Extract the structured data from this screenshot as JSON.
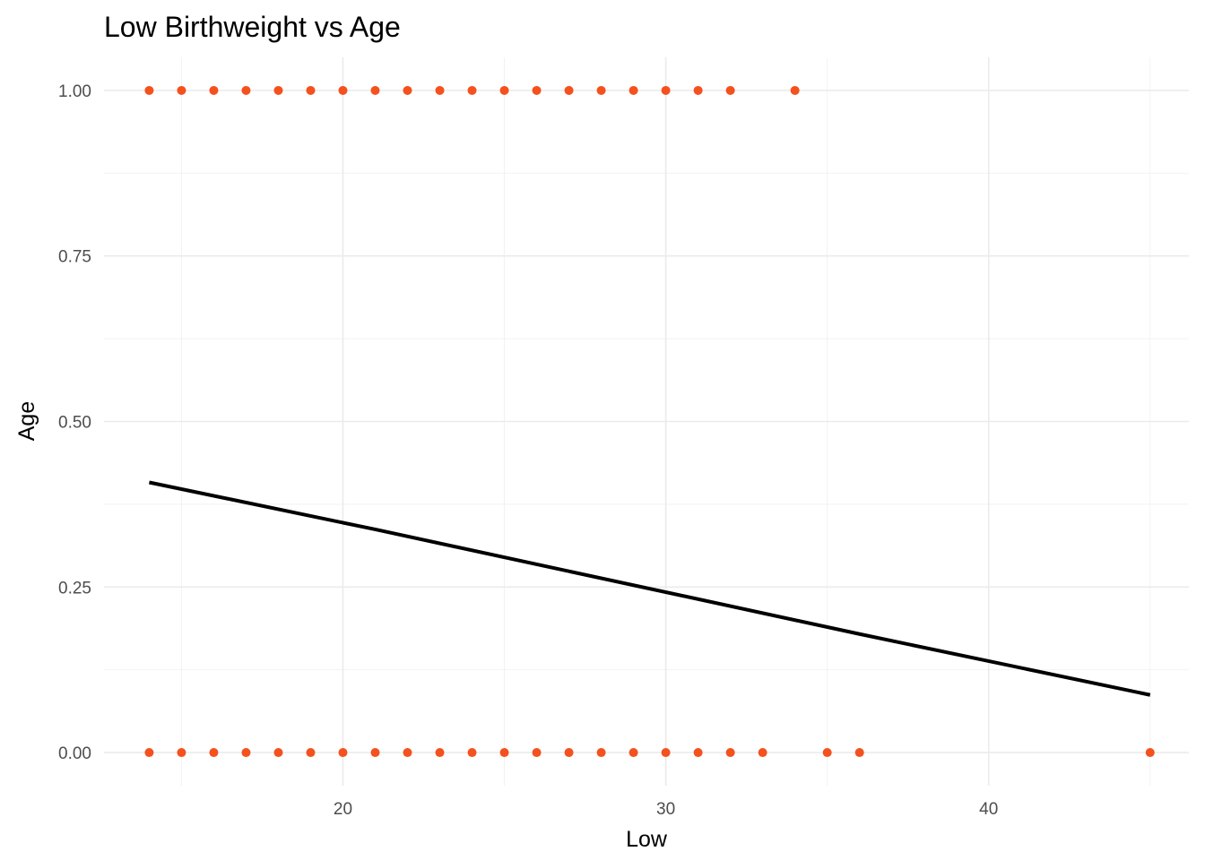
{
  "chart_data": {
    "type": "scatter",
    "title": "Low Birthweight vs Age",
    "xlabel": "Low",
    "ylabel": "Age",
    "xlim": [
      12.6,
      46.2
    ],
    "ylim": [
      -0.05,
      1.05
    ],
    "x_ticks": [
      20,
      30,
      40
    ],
    "x_tick_labels": [
      "20",
      "30",
      "40"
    ],
    "y_ticks": [
      0,
      0.25,
      0.5,
      0.75,
      1.0
    ],
    "y_tick_labels": [
      "0.00",
      "0.25",
      "0.50",
      "0.75",
      "1.00"
    ],
    "grid": true,
    "legend": "none",
    "point_color": "#f4511e",
    "line_color": "#000000",
    "points": [
      [
        14,
        1
      ],
      [
        15,
        1
      ],
      [
        16,
        1
      ],
      [
        17,
        1
      ],
      [
        18,
        1
      ],
      [
        19,
        1
      ],
      [
        20,
        1
      ],
      [
        21,
        1
      ],
      [
        22,
        1
      ],
      [
        23,
        1
      ],
      [
        24,
        1
      ],
      [
        25,
        1
      ],
      [
        26,
        1
      ],
      [
        27,
        1
      ],
      [
        28,
        1
      ],
      [
        29,
        1
      ],
      [
        30,
        1
      ],
      [
        31,
        1
      ],
      [
        32,
        1
      ],
      [
        34,
        1
      ],
      [
        14,
        0
      ],
      [
        15,
        0
      ],
      [
        16,
        0
      ],
      [
        17,
        0
      ],
      [
        18,
        0
      ],
      [
        19,
        0
      ],
      [
        20,
        0
      ],
      [
        21,
        0
      ],
      [
        22,
        0
      ],
      [
        23,
        0
      ],
      [
        24,
        0
      ],
      [
        25,
        0
      ],
      [
        26,
        0
      ],
      [
        27,
        0
      ],
      [
        28,
        0
      ],
      [
        29,
        0
      ],
      [
        30,
        0
      ],
      [
        31,
        0
      ],
      [
        32,
        0
      ],
      [
        33,
        0
      ],
      [
        35,
        0
      ],
      [
        36,
        0
      ],
      [
        45,
        0
      ]
    ],
    "fit_line": [
      [
        14,
        0.408
      ],
      [
        21,
        0.337
      ],
      [
        36,
        0.179
      ],
      [
        45,
        0.087
      ]
    ]
  }
}
